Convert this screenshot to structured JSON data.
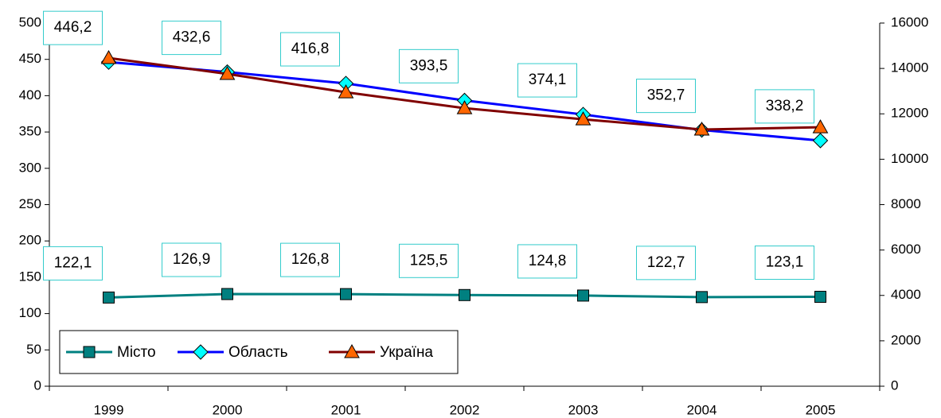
{
  "chart_data": {
    "type": "line",
    "categories": [
      "1999",
      "2000",
      "2001",
      "2002",
      "2003",
      "2004",
      "2005"
    ],
    "series": [
      {
        "name": "Місто",
        "color": "#008080",
        "marker": "square",
        "marker_color": "#008080",
        "axis": "y",
        "values": [
          122.1,
          126.9,
          126.8,
          125.5,
          124.8,
          122.7,
          123.1
        ],
        "value_labels": [
          "122,1",
          "126,9",
          "126,8",
          "125,5",
          "124,8",
          "122,7",
          "123,1"
        ]
      },
      {
        "name": "Область",
        "color": "#0000ff",
        "marker": "diamond",
        "marker_color": "#00ffff",
        "axis": "y",
        "values": [
          446.2,
          432.6,
          416.8,
          393.5,
          374.1,
          352.7,
          338.2
        ],
        "value_labels": [
          "446,2",
          "432,6",
          "416,8",
          "393,5",
          "374,1",
          "352,7",
          "338,2"
        ]
      },
      {
        "name": "Україна",
        "color": "#800000",
        "marker": "triangle",
        "marker_color": "#ff6600",
        "axis": "y2",
        "values": [
          14460,
          13760,
          12950,
          12250,
          11760,
          11310,
          11410
        ]
      }
    ],
    "ylim": [
      0,
      500
    ],
    "yticks": [
      0,
      50,
      100,
      150,
      200,
      250,
      300,
      350,
      400,
      450,
      500
    ],
    "y2lim": [
      0,
      16000
    ],
    "y2ticks": [
      0,
      2000,
      4000,
      6000,
      8000,
      10000,
      12000,
      14000,
      16000
    ],
    "grid": false,
    "legend": "lower left"
  }
}
